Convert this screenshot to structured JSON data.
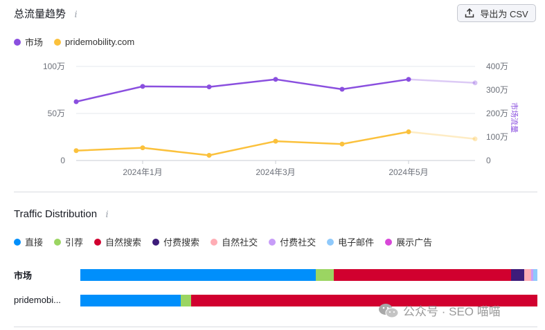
{
  "header": {
    "title": "总流量趋势",
    "info_glyph": "i",
    "export_label": "导出为 CSV"
  },
  "legend": [
    {
      "label": "市场",
      "color": "#8a4fdf"
    },
    {
      "label": "pridemobility.com",
      "color": "#fbc13c"
    }
  ],
  "chart_data": {
    "type": "line",
    "x": [
      "2023-12",
      "2024-01",
      "2024-02",
      "2024-03",
      "2024-04",
      "2024-05",
      "2024-06"
    ],
    "x_tick_labels": [
      "2024年1月",
      "2024年3月",
      "2024年5月"
    ],
    "left_axis": {
      "ticks": [
        "100万",
        "50万",
        "0"
      ],
      "range": [
        0,
        1000000
      ]
    },
    "right_axis": {
      "label": "市场流量",
      "ticks": [
        "400万",
        "300万",
        "200万",
        "100万",
        "0"
      ],
      "range": [
        0,
        4000000
      ]
    },
    "series": [
      {
        "name": "市场",
        "axis": "right",
        "color": "#8a4fdf",
        "values": [
          2500000,
          3150000,
          3130000,
          3450000,
          3030000,
          3450000,
          3300000
        ]
      },
      {
        "name": "pridemobility.com",
        "axis": "left",
        "color": "#fbc13c",
        "values": [
          105000,
          135000,
          55000,
          205000,
          175000,
          305000,
          230000
        ]
      }
    ],
    "last_segment_faded": true,
    "grid": true
  },
  "distribution": {
    "title": "Traffic Distribution",
    "categories": [
      {
        "label": "直接",
        "color": "#008ffb"
      },
      {
        "label": "引荐",
        "color": "#9bd562"
      },
      {
        "label": "自然搜索",
        "color": "#d1002f"
      },
      {
        "label": "付费搜索",
        "color": "#3d1c7a"
      },
      {
        "label": "自然社交",
        "color": "#ffadb5"
      },
      {
        "label": "付费社交",
        "color": "#c79cf8"
      },
      {
        "label": "电子邮件",
        "color": "#8fc9fb"
      },
      {
        "label": "展示广告",
        "color": "#d847d8"
      }
    ],
    "rows": [
      {
        "label": "市场",
        "shares": [
          51.5,
          4.0,
          38.8,
          2.8,
          1.5,
          0.5,
          0.9,
          0.0
        ]
      },
      {
        "label": "pridemobi...",
        "shares": [
          22.0,
          2.3,
          75.7,
          0,
          0,
          0,
          0,
          0
        ]
      }
    ]
  },
  "watermark": {
    "text": "公众号 · SEO 喵喵"
  }
}
